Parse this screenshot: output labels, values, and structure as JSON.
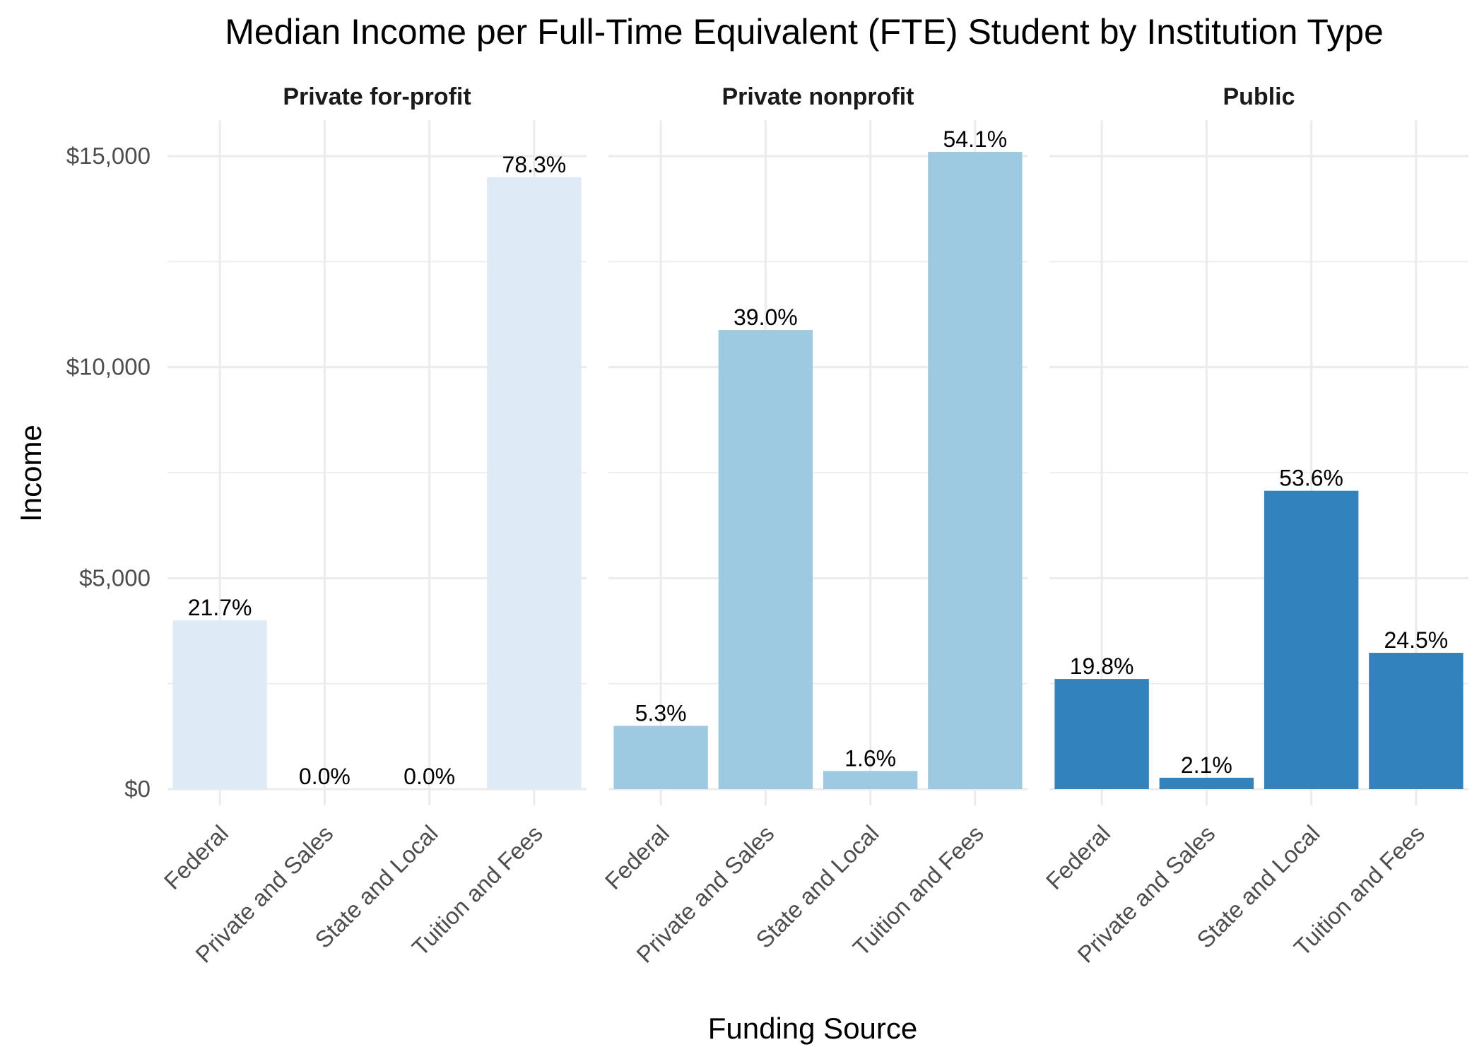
{
  "chart_data": {
    "type": "bar",
    "title": "Median Income per Full-Time Equivalent (FTE) Student by Institution Type",
    "xlabel": "Funding Source",
    "ylabel": "Income",
    "ylim": [
      0,
      16000
    ],
    "y_ticks": [
      {
        "value": 0,
        "label": "$0"
      },
      {
        "value": 5000,
        "label": "$5,000"
      },
      {
        "value": 10000,
        "label": "$10,000"
      },
      {
        "value": 15000,
        "label": "$15,000"
      }
    ],
    "categories": [
      "Federal",
      "Private and Sales",
      "State and Local",
      "Tuition and Fees"
    ],
    "grid": true,
    "legend": "none",
    "facets": [
      {
        "name": "Private for-profit",
        "color": "#deebf7",
        "values": [
          4000,
          0,
          0,
          14500
        ],
        "labels": [
          "21.7%",
          "0.0%",
          "0.0%",
          "78.3%"
        ]
      },
      {
        "name": "Private nonprofit",
        "color": "#9ecae1",
        "values": [
          1500,
          10880,
          430,
          15100
        ],
        "labels": [
          "5.3%",
          "39.0%",
          "1.6%",
          "54.1%"
        ]
      },
      {
        "name": "Public",
        "color": "#3182bd",
        "values": [
          2610,
          270,
          7070,
          3230
        ],
        "labels": [
          "19.8%",
          "2.1%",
          "53.6%",
          "24.5%"
        ]
      }
    ]
  }
}
